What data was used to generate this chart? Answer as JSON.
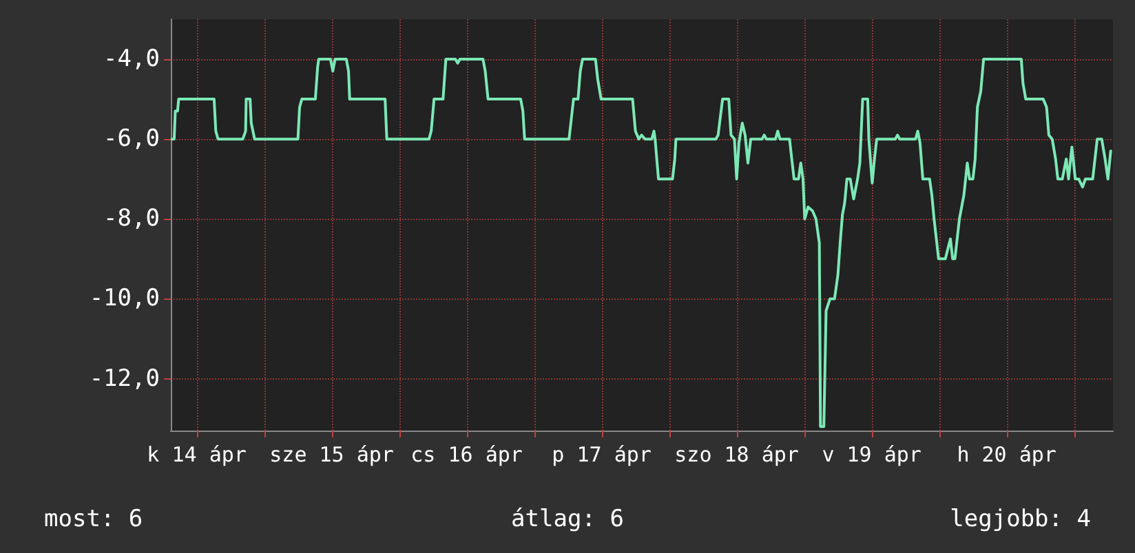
{
  "chart_data": {
    "type": "line",
    "color": "#7ce8b6",
    "grid": true,
    "marker": "none",
    "line_style": "solid",
    "xlim": [
      "--04-14T07:24",
      "--04-21T06:54"
    ],
    "ylim": [
      -13.3,
      -3
    ],
    "xticks": [
      {
        "value": "--04-14T12:00",
        "label": "k 14 ápr"
      },
      {
        "value": "--04-15T00:00",
        "label": null
      },
      {
        "value": "--04-15T12:00",
        "label": "sze 15 ápr"
      },
      {
        "value": "--04-16T00:00",
        "label": null
      },
      {
        "value": "--04-16T12:00",
        "label": "cs 16 ápr"
      },
      {
        "value": "--04-17T00:00",
        "label": null
      },
      {
        "value": "--04-17T12:00",
        "label": "p 17 ápr"
      },
      {
        "value": "--04-18T00:00",
        "label": null
      },
      {
        "value": "--04-18T12:00",
        "label": "szo 18 ápr"
      },
      {
        "value": "--04-19T00:00",
        "label": null
      },
      {
        "value": "--04-19T12:00",
        "label": "v 19 ápr"
      },
      {
        "value": "--04-20T00:00",
        "label": null
      },
      {
        "value": "--04-20T12:00",
        "label": "h 20 ápr"
      },
      {
        "value": "--04-21T00:00",
        "label": null
      }
    ],
    "yticks": [
      {
        "value": -4,
        "label": "-4,0"
      },
      {
        "value": -6,
        "label": "-6,0"
      },
      {
        "value": -8,
        "label": "-8,0"
      },
      {
        "value": -10,
        "label": "-10,0"
      },
      {
        "value": -12,
        "label": "-12,0"
      }
    ],
    "x": [
      "--04-14T07:36",
      "--04-14T08:00",
      "--04-14T08:12",
      "--04-14T08:36",
      "--04-14T08:48",
      "--04-14T15:06",
      "--04-14T15:24",
      "--04-14T15:48",
      "--04-14T20:12",
      "--04-14T20:42",
      "--04-14T20:48",
      "--04-14T21:30",
      "--04-14T21:42",
      "--04-14T22:18",
      "--04-15T06:00",
      "--04-15T06:18",
      "--04-15T06:42",
      "--04-15T09:06",
      "--04-15T09:30",
      "--04-15T09:42",
      "--04-15T11:48",
      "--04-15T12:12",
      "--04-15T12:36",
      "--04-15T14:36",
      "--04-15T15:00",
      "--04-15T15:12",
      "--04-15T21:30",
      "--04-15T21:48",
      "--04-16T05:18",
      "--04-16T05:42",
      "--04-16T06:12",
      "--04-16T07:48",
      "--04-16T08:00",
      "--04-16T08:18",
      "--04-16T10:00",
      "--04-16T10:24",
      "--04-16T10:48",
      "--04-16T14:54",
      "--04-16T15:18",
      "--04-16T15:48",
      "--04-16T21:36",
      "--04-16T22:00",
      "--04-16T22:18",
      "--04-17T06:12",
      "--04-17T06:36",
      "--04-17T07:00",
      "--04-17T07:48",
      "--04-17T08:12",
      "--04-17T08:36",
      "--04-17T10:54",
      "--04-17T11:18",
      "--04-17T11:54",
      "--04-17T17:30",
      "--04-17T18:00",
      "--04-17T18:36",
      "--04-17T19:06",
      "--04-17T19:42",
      "--04-17T20:12",
      "--04-17T20:54",
      "--04-17T21:18",
      "--04-17T21:30",
      "--04-17T22:06",
      "--04-18T00:36",
      "--04-18T01:00",
      "--04-18T01:12",
      "--04-18T08:18",
      "--04-18T08:42",
      "--04-18T09:30",
      "--04-18T10:36",
      "--04-18T11:00",
      "--04-18T11:36",
      "--04-18T12:00",
      "--04-18T12:24",
      "--04-18T13:00",
      "--04-18T13:30",
      "--04-18T14:00",
      "--04-18T14:30",
      "--04-18T16:30",
      "--04-18T16:54",
      "--04-18T17:18",
      "--04-18T18:54",
      "--04-18T19:18",
      "--04-18T19:42",
      "--04-18T21:24",
      "--04-18T21:48",
      "--04-18T22:12",
      "--04-18T23:00",
      "--04-18T23:24",
      "--04-18T23:48",
      "--04-19T00:06",
      "--04-19T00:42",
      "--04-19T01:30",
      "--04-19T02:06",
      "--04-19T02:42",
      "--04-19T02:54",
      "--04-19T03:30",
      "--04-19T03:54",
      "--04-19T04:36",
      "--04-19T05:24",
      "--04-19T06:00",
      "--04-19T06:24",
      "--04-19T06:48",
      "--04-19T07:12",
      "--04-19T07:36",
      "--04-19T08:12",
      "--04-19T08:48",
      "--04-19T09:30",
      "--04-19T09:54",
      "--04-19T10:24",
      "--04-19T11:18",
      "--04-19T11:30",
      "--04-19T12:06",
      "--04-19T12:30",
      "--04-19T12:54",
      "--04-19T16:12",
      "--04-19T16:36",
      "--04-19T17:00",
      "--04-19T19:48",
      "--04-19T20:12",
      "--04-19T20:36",
      "--04-19T21:06",
      "--04-19T22:18",
      "--04-19T22:42",
      "--04-19T23:06",
      "--04-19T23:54",
      "--04-20T01:06",
      "--04-20T02:00",
      "--04-20T02:24",
      "--04-20T02:48",
      "--04-20T03:36",
      "--04-20T04:24",
      "--04-20T05:00",
      "--04-20T05:24",
      "--04-20T06:00",
      "--04-20T06:24",
      "--04-20T06:48",
      "--04-20T07:24",
      "--04-20T07:54",
      "--04-20T14:36",
      "--04-20T14:54",
      "--04-20T15:24",
      "--04-20T18:30",
      "--04-20T19:06",
      "--04-20T19:30",
      "--04-20T20:06",
      "--04-20T20:42",
      "--04-20T21:06",
      "--04-20T21:54",
      "--04-20T22:36",
      "--04-20T23:00",
      "--04-20T23:36",
      "--04-21T00:12",
      "--04-21T00:48",
      "--04-21T01:30",
      "--04-21T02:00",
      "--04-21T03:18",
      "--04-21T03:42",
      "--04-21T04:06",
      "--04-21T04:54",
      "--04-21T05:30",
      "--04-21T06:00",
      "--04-21T06:30"
    ],
    "values": [
      -6,
      -6,
      -5.3,
      -5.3,
      -5,
      -5,
      -5.8,
      -6,
      -6,
      -5.8,
      -5,
      -5,
      -5.6,
      -6,
      -6,
      -5.2,
      -5,
      -5,
      -4.2,
      -4,
      -4,
      -4.3,
      -4,
      -4,
      -4.3,
      -5,
      -5,
      -6,
      -6,
      -5.8,
      -5,
      -5,
      -4.6,
      -4,
      -4,
      -4.1,
      -4,
      -4,
      -4.3,
      -5,
      -5,
      -5.3,
      -6,
      -6,
      -5.5,
      -5,
      -5,
      -4.3,
      -4,
      -4,
      -4.5,
      -5,
      -5,
      -5.8,
      -6,
      -5.9,
      -6,
      -6,
      -6,
      -5.8,
      -6,
      -7,
      -7,
      -6.5,
      -6,
      -6,
      -5.9,
      -5,
      -5,
      -5.9,
      -6,
      -7,
      -6.1,
      -5.6,
      -5.9,
      -6.6,
      -6,
      -6,
      -5.9,
      -6,
      -6,
      -5.8,
      -6,
      -6,
      -6.5,
      -7,
      -7,
      -6.6,
      -7,
      -8,
      -7.7,
      -7.8,
      -8,
      -8.6,
      -13.2,
      -13.2,
      -10.3,
      -10,
      -10,
      -9.4,
      -8.6,
      -7.9,
      -7.6,
      -7,
      -7,
      -7.5,
      -7,
      -6.6,
      -5,
      -5,
      -6,
      -7.1,
      -6.5,
      -6,
      -6,
      -5.9,
      -6,
      -6,
      -5.8,
      -6.1,
      -7,
      -7,
      -7.4,
      -8,
      -9,
      -9,
      -8.5,
      -9,
      -9,
      -8,
      -7.4,
      -6.6,
      -7,
      -7,
      -6.5,
      -5.2,
      -4.8,
      -4,
      -4,
      -4.6,
      -5,
      -5,
      -5.2,
      -5.9,
      -6,
      -6.5,
      -7,
      -7,
      -6.5,
      -7,
      -6.2,
      -7,
      -7,
      -7.2,
      -7,
      -7,
      -6.5,
      -6,
      -6,
      -6.5,
      -7,
      -6.3
    ],
    "annotations": [
      "most: 6",
      "átlag: 6",
      "legjobb: 4"
    ]
  }
}
